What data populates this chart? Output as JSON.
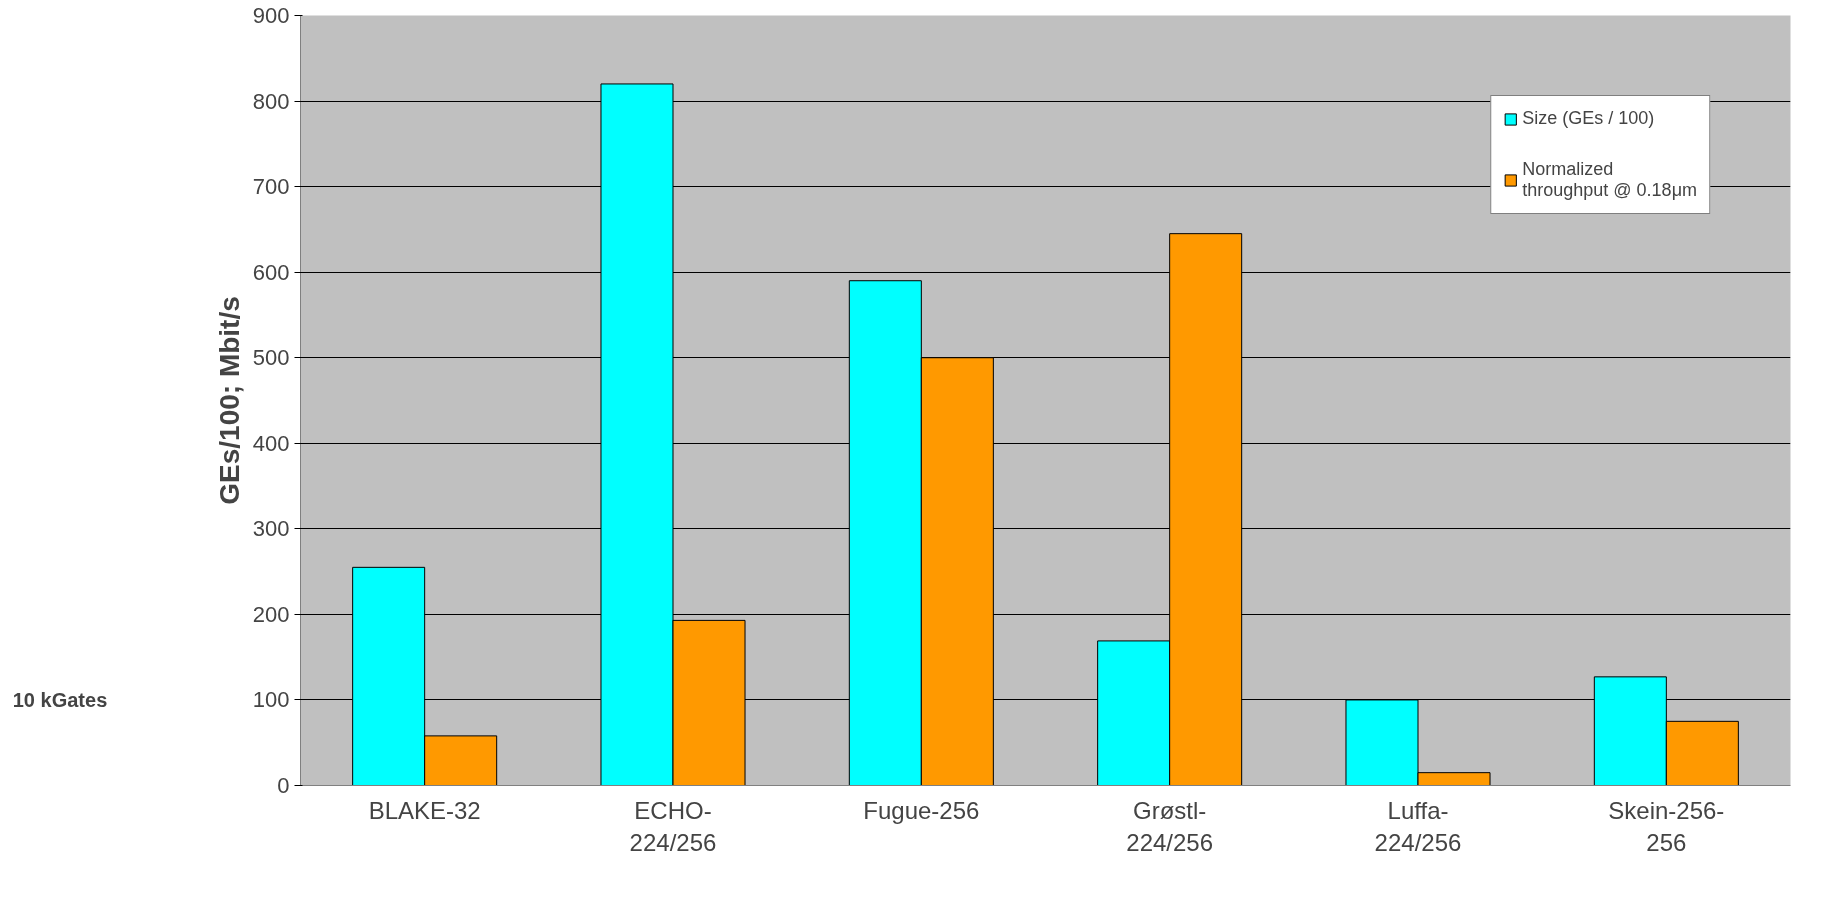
{
  "chart_data": {
    "type": "bar",
    "categories": [
      "BLAKE-32",
      "ECHO-224/256",
      "Fugue-256",
      "Grøstl-224/256",
      "Luffa-224/256",
      "Skein-256-256"
    ],
    "ylabel": "GEs/100; Mbit/s",
    "series": [
      {
        "name": "Size (GEs / 100)",
        "color": "#00ffff",
        "values": [
          255,
          820,
          590,
          169,
          100,
          127
        ]
      },
      {
        "name": "Normalized throughput @ 0.18μm",
        "color": "#ff9900",
        "values": [
          58,
          193,
          500,
          645,
          15,
          75
        ]
      }
    ],
    "ylim": [
      0,
      900
    ],
    "yticks": [
      0,
      100,
      200,
      300,
      400,
      500,
      600,
      700,
      800,
      900
    ],
    "grid": "y",
    "legend": "top right",
    "annotations": [
      "10 kGates"
    ]
  }
}
